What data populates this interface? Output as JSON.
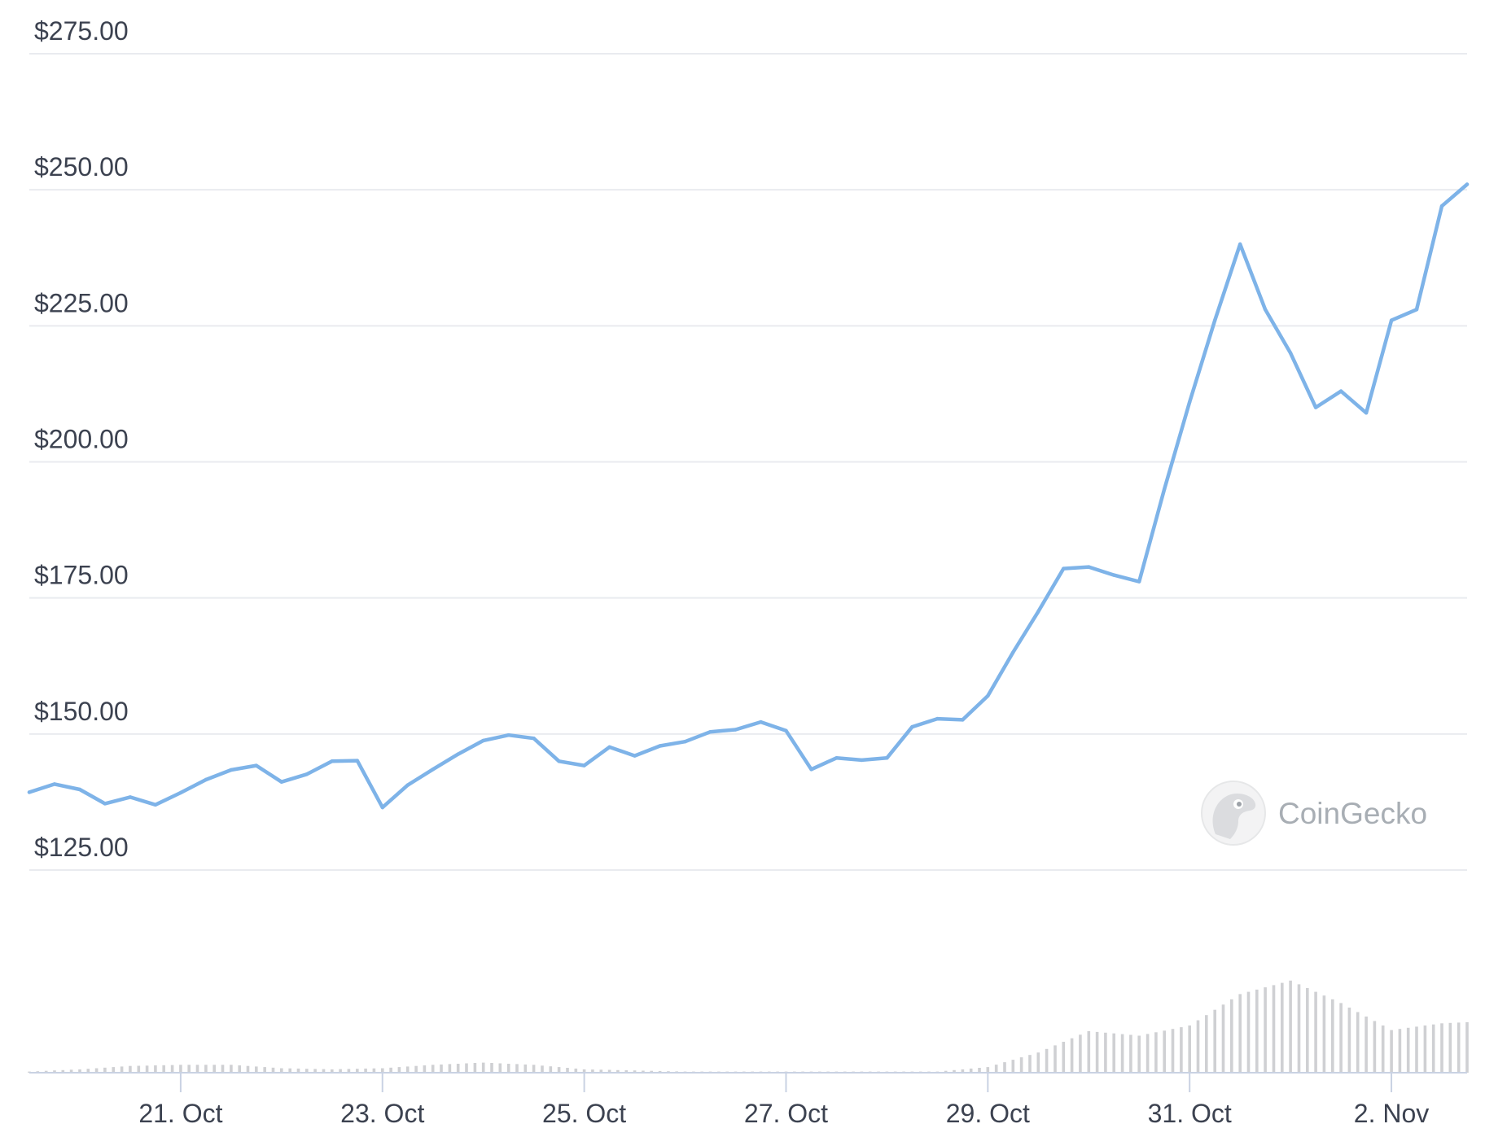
{
  "chart_data": {
    "type": "line",
    "title": "",
    "xlabel": "",
    "ylabel": "",
    "y_tick_labels": [
      "$125.00",
      "$150.00",
      "$175.00",
      "$200.00",
      "$225.00",
      "$250.00",
      "$275.00"
    ],
    "y_ticks": [
      125,
      150,
      175,
      200,
      225,
      250,
      275
    ],
    "ylim": [
      125,
      275
    ],
    "x_tick_labels": [
      "21. Oct",
      "23. Oct",
      "25. Oct",
      "27. Oct",
      "29. Oct",
      "31. Oct",
      "2. Nov"
    ],
    "x_tick_dates": [
      "2023-10-21",
      "2023-10-23",
      "2023-10-25",
      "2023-10-27",
      "2023-10-29",
      "2023-10-31",
      "2023-11-02"
    ],
    "xlim": [
      "2023-10-19T12:00",
      "2023-11-02T18:00"
    ],
    "grid": true,
    "legend": "none",
    "price_color": "#7eb3e8",
    "volume_color": "#cfd0d3",
    "series": [
      {
        "values": [
          [
            "2023-10-19T12:00",
            139.3
          ],
          [
            "2023-10-19T18:00",
            140.8
          ],
          [
            "2023-10-20T00:00",
            139.8
          ],
          [
            "2023-10-20T06:00",
            137.2
          ],
          [
            "2023-10-20T12:00",
            138.4
          ],
          [
            "2023-10-20T18:00",
            137.0
          ],
          [
            "2023-10-21T00:00",
            139.2
          ],
          [
            "2023-10-21T06:00",
            141.6
          ],
          [
            "2023-10-21T12:00",
            143.4
          ],
          [
            "2023-10-21T18:00",
            144.2
          ],
          [
            "2023-10-22T00:00",
            141.2
          ],
          [
            "2023-10-22T06:00",
            142.6
          ],
          [
            "2023-10-22T12:00",
            145.0
          ],
          [
            "2023-10-22T18:00",
            145.1
          ],
          [
            "2023-10-23T00:00",
            136.5
          ],
          [
            "2023-10-23T06:00",
            140.6
          ],
          [
            "2023-10-23T12:00",
            143.5
          ],
          [
            "2023-10-23T18:00",
            146.3
          ],
          [
            "2023-10-24T00:00",
            148.8
          ],
          [
            "2023-10-24T06:00",
            149.8
          ],
          [
            "2023-10-24T12:00",
            149.2
          ],
          [
            "2023-10-24T18:00",
            145.0
          ],
          [
            "2023-10-25T00:00",
            144.2
          ],
          [
            "2023-10-25T06:00",
            147.6
          ],
          [
            "2023-10-25T12:00",
            146.0
          ],
          [
            "2023-10-25T18:00",
            147.8
          ],
          [
            "2023-10-26T00:00",
            148.6
          ],
          [
            "2023-10-26T06:00",
            150.4
          ],
          [
            "2023-10-26T12:00",
            150.8
          ],
          [
            "2023-10-26T18:00",
            152.2
          ],
          [
            "2023-10-27T00:00",
            150.6
          ],
          [
            "2023-10-27T06:00",
            143.5
          ],
          [
            "2023-10-27T12:00",
            145.6
          ],
          [
            "2023-10-27T18:00",
            145.2
          ],
          [
            "2023-10-28T00:00",
            145.6
          ],
          [
            "2023-10-28T06:00",
            151.3
          ],
          [
            "2023-10-28T12:00",
            152.8
          ],
          [
            "2023-10-28T18:00",
            152.6
          ],
          [
            "2023-10-29T00:00",
            157.0
          ],
          [
            "2023-10-29T06:00",
            165.0
          ],
          [
            "2023-10-29T12:00",
            172.5
          ],
          [
            "2023-10-29T18:00",
            180.4
          ],
          [
            "2023-10-30T00:00",
            180.7
          ],
          [
            "2023-10-30T06:00",
            179.2
          ],
          [
            "2023-10-30T12:00",
            178.0
          ],
          [
            "2023-10-30T18:00",
            195.0
          ],
          [
            "2023-10-31T00:00",
            211.0
          ],
          [
            "2023-10-31T06:00",
            226.0
          ],
          [
            "2023-10-31T12:00",
            240.0
          ],
          [
            "2023-10-31T18:00",
            228.0
          ],
          [
            "2023-11-01T00:00",
            220.0
          ],
          [
            "2023-11-01T06:00",
            210.0
          ],
          [
            "2023-11-01T12:00",
            213.0
          ],
          [
            "2023-11-01T18:00",
            209.0
          ],
          [
            "2023-11-02T00:00",
            226.0
          ],
          [
            "2023-11-02T06:00",
            228.0
          ],
          [
            "2023-11-02T12:00",
            247.0
          ],
          [
            "2023-11-02T18:00",
            251.0
          ]
        ]
      }
    ],
    "volume": {
      "ylim": [
        0,
        1
      ],
      "values": [
        [
          "2023-10-19T12:00",
          0.01
        ],
        [
          "2023-10-20T00:00",
          0.03
        ],
        [
          "2023-10-20T12:00",
          0.06
        ],
        [
          "2023-10-21T00:00",
          0.07
        ],
        [
          "2023-10-21T12:00",
          0.07
        ],
        [
          "2023-10-22T00:00",
          0.04
        ],
        [
          "2023-10-22T12:00",
          0.03
        ],
        [
          "2023-10-23T00:00",
          0.04
        ],
        [
          "2023-10-23T12:00",
          0.07
        ],
        [
          "2023-10-24T00:00",
          0.09
        ],
        [
          "2023-10-24T12:00",
          0.07
        ],
        [
          "2023-10-25T00:00",
          0.03
        ],
        [
          "2023-10-25T12:00",
          0.02
        ],
        [
          "2023-10-26T00:00",
          0.01
        ],
        [
          "2023-10-26T12:00",
          0.01
        ],
        [
          "2023-10-27T00:00",
          0.01
        ],
        [
          "2023-10-27T12:00",
          0.01
        ],
        [
          "2023-10-28T00:00",
          0.01
        ],
        [
          "2023-10-28T12:00",
          0.01
        ],
        [
          "2023-10-29T00:00",
          0.05
        ],
        [
          "2023-10-29T12:00",
          0.18
        ],
        [
          "2023-10-30T00:00",
          0.37
        ],
        [
          "2023-10-30T12:00",
          0.33
        ],
        [
          "2023-10-31T00:00",
          0.42
        ],
        [
          "2023-10-31T12:00",
          0.7
        ],
        [
          "2023-11-01T00:00",
          0.82
        ],
        [
          "2023-11-01T12:00",
          0.62
        ],
        [
          "2023-11-02T00:00",
          0.38
        ],
        [
          "2023-11-02T12:00",
          0.44
        ],
        [
          "2023-11-02T18:00",
          0.45
        ]
      ]
    }
  },
  "watermark": {
    "brand_name": "CoinGecko",
    "icon": "gecko-logo-icon"
  }
}
